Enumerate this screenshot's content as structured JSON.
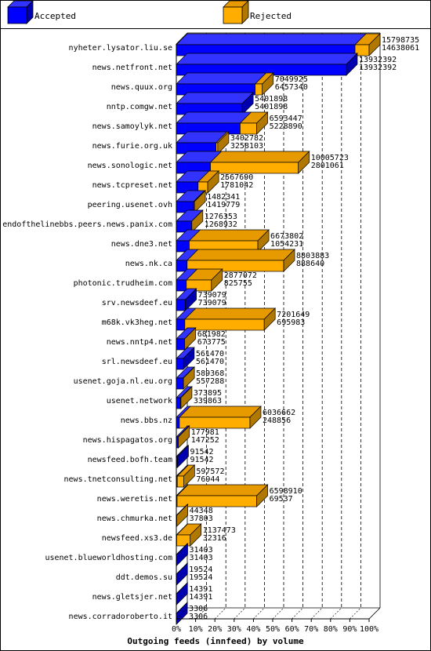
{
  "chart_data": {
    "type": "bar",
    "orientation": "horizontal",
    "stacked": true,
    "title": "Outgoing feeds (innfeed) by volume",
    "legend_position": "top",
    "xlim": [
      0,
      100
    ],
    "x_tick_labels": [
      "0%",
      "10%",
      "20%",
      "30%",
      "40%",
      "50%",
      "60%",
      "70%",
      "80%",
      "90%",
      "100%"
    ],
    "grid": true,
    "series": [
      {
        "name": "Accepted",
        "color": "#0000ff"
      },
      {
        "name": "Rejected",
        "color": "#ffae00"
      }
    ],
    "rows": [
      {
        "label": "nyheter.lysator.liu.se",
        "top": "15798735",
        "bottom": "14638061",
        "accepted_pct": 92.7,
        "rejected_pct": 7.3
      },
      {
        "label": "news.netfront.net",
        "top": "13932392",
        "bottom": "13932392",
        "accepted_pct": 88.2,
        "rejected_pct": 0
      },
      {
        "label": "news.quux.org",
        "top": "7049925",
        "bottom": "6457340",
        "accepted_pct": 40.9,
        "rejected_pct": 3.7
      },
      {
        "label": "nntp.comgw.net",
        "top": "5401898",
        "bottom": "5401898",
        "accepted_pct": 34.2,
        "rejected_pct": 0
      },
      {
        "label": "news.samoylyk.net",
        "top": "6593447",
        "bottom": "5228890",
        "accepted_pct": 33.1,
        "rejected_pct": 8.6
      },
      {
        "label": "news.furie.org.uk",
        "top": "3402782",
        "bottom": "3258103",
        "accepted_pct": 20.6,
        "rejected_pct": 0.9
      },
      {
        "label": "news.sonologic.net",
        "top": "10005723",
        "bottom": "2801061",
        "accepted_pct": 17.7,
        "rejected_pct": 45.6
      },
      {
        "label": "news.tcpreset.net",
        "top": "2567690",
        "bottom": "1781042",
        "accepted_pct": 11.3,
        "rejected_pct": 5
      },
      {
        "label": "peering.usenet.ovh",
        "top": "1482341",
        "bottom": "1419779",
        "accepted_pct": 9,
        "rejected_pct": 0.4
      },
      {
        "label": "endofthelinebbs.peers.news.panix.com",
        "top": "1276353",
        "bottom": "1268932",
        "accepted_pct": 8,
        "rejected_pct": 0.05
      },
      {
        "label": "news.dne3.net",
        "top": "6673802",
        "bottom": "1054231",
        "accepted_pct": 6.7,
        "rejected_pct": 35.6
      },
      {
        "label": "news.nk.ca",
        "top": "8803883",
        "bottom": "888640",
        "accepted_pct": 5.6,
        "rejected_pct": 50.1
      },
      {
        "label": "photonic.trudheim.com",
        "top": "2877072",
        "bottom": "825755",
        "accepted_pct": 5.2,
        "rejected_pct": 13
      },
      {
        "label": "srv.newsdeef.eu",
        "top": "739079",
        "bottom": "739079",
        "accepted_pct": 4.7,
        "rejected_pct": 0
      },
      {
        "label": "m68k.vk3heg.net",
        "top": "7201649",
        "bottom": "695983",
        "accepted_pct": 4.4,
        "rejected_pct": 41.2
      },
      {
        "label": "news.nntp4.net",
        "top": "681982",
        "bottom": "673775",
        "accepted_pct": 4.3,
        "rejected_pct": 0.05
      },
      {
        "label": "srl.newsdeef.eu",
        "top": "561470",
        "bottom": "561470",
        "accepted_pct": 3.6,
        "rejected_pct": 0
      },
      {
        "label": "usenet.goja.nl.eu.org",
        "top": "589368",
        "bottom": "557288",
        "accepted_pct": 3.5,
        "rejected_pct": 0.2
      },
      {
        "label": "usenet.network",
        "top": "373895",
        "bottom": "339863",
        "accepted_pct": 2.2,
        "rejected_pct": 0.2
      },
      {
        "label": "news.bbs.nz",
        "top": "6036662",
        "bottom": "248856",
        "accepted_pct": 1.6,
        "rejected_pct": 36.6
      },
      {
        "label": "news.hispagatos.org",
        "top": "177981",
        "bottom": "147252",
        "accepted_pct": 0.9,
        "rejected_pct": 0.2
      },
      {
        "label": "newsfeed.bofh.team",
        "top": "91542",
        "bottom": "91542",
        "accepted_pct": 0.6,
        "rejected_pct": 0
      },
      {
        "label": "news.tnetconsulting.net",
        "top": "597572",
        "bottom": "76944",
        "accepted_pct": 0.5,
        "rejected_pct": 3.3
      },
      {
        "label": "news.weretis.net",
        "top": "6598910",
        "bottom": "69537",
        "accepted_pct": 0.4,
        "rejected_pct": 41.3
      },
      {
        "label": "news.chmurka.net",
        "top": "44348",
        "bottom": "37803",
        "accepted_pct": 0.2,
        "rejected_pct": 0.05
      },
      {
        "label": "newsfeed.xs3.de",
        "top": "1137473",
        "bottom": "32316",
        "accepted_pct": 0.2,
        "rejected_pct": 7
      },
      {
        "label": "usenet.blueworldhosting.com",
        "top": "31403",
        "bottom": "31403",
        "accepted_pct": 0.2,
        "rejected_pct": 0
      },
      {
        "label": "ddt.demos.su",
        "top": "19524",
        "bottom": "19524",
        "accepted_pct": 0.1,
        "rejected_pct": 0
      },
      {
        "label": "news.gletsjer.net",
        "top": "14391",
        "bottom": "14391",
        "accepted_pct": 0.1,
        "rejected_pct": 0
      },
      {
        "label": "news.corradoroberto.it",
        "top": "3306",
        "bottom": "3306",
        "accepted_pct": 0.02,
        "rejected_pct": 0
      }
    ]
  }
}
